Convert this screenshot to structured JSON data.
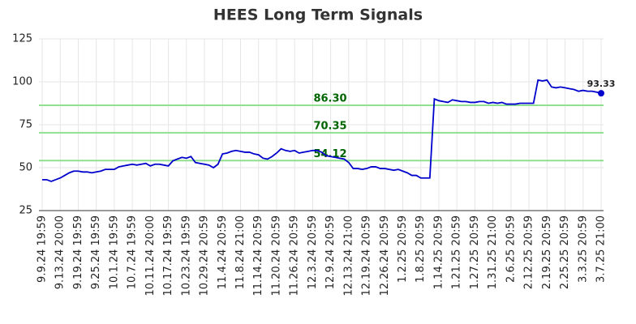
{
  "chart_data": {
    "type": "line",
    "title": "HEES Long Term Signals",
    "categories": [
      "9.9.24 19:59",
      null,
      null,
      null,
      "9.13.24 20:00",
      null,
      null,
      null,
      "9.19.24 19:59",
      null,
      null,
      null,
      "9.25.24 19:59",
      null,
      null,
      null,
      "10.1.24 19:59",
      null,
      null,
      null,
      "10.7.24 19:59",
      null,
      null,
      null,
      "10.11.24 20:00",
      null,
      null,
      null,
      "10.17.24 19:59",
      null,
      null,
      null,
      "10.23.24 19:59",
      null,
      null,
      null,
      "10.29.24 20:59",
      null,
      null,
      null,
      "11.4.24 20:59",
      null,
      null,
      null,
      "11.8.24 21:00",
      null,
      null,
      null,
      "11.14.24 20:59",
      null,
      null,
      null,
      "11.20.24 20:59",
      null,
      null,
      null,
      "11.26.24 20:59",
      null,
      null,
      null,
      "12.3.24 20:59",
      null,
      null,
      null,
      "12.9.24 20:59",
      null,
      null,
      null,
      "12.13.24 21:00",
      null,
      null,
      null,
      "12.19.24 20:59",
      null,
      null,
      null,
      "12.26.24 20:59",
      null,
      null,
      null,
      "1.2.25 20:59",
      null,
      null,
      null,
      "1.8.25 20:59",
      null,
      null,
      null,
      "1.14.25 20:59",
      null,
      null,
      null,
      "1.21.25 20:59",
      null,
      null,
      null,
      "1.27.25 20:59",
      null,
      null,
      null,
      "1.31.25 21:00",
      null,
      null,
      null,
      "2.6.25 20:59",
      null,
      null,
      null,
      "2.12.25 20:59",
      null,
      null,
      null,
      "2.19.25 20:59",
      null,
      null,
      null,
      "2.25.25 20:59",
      null,
      null,
      null,
      "3.3.25 20:59",
      null,
      null,
      null,
      "3.7.25 21:00"
    ],
    "values": [
      43,
      43,
      42,
      43,
      44,
      45.5,
      47,
      48,
      48,
      47.5,
      47.5,
      47,
      47.5,
      48,
      49,
      49,
      49,
      50.5,
      51,
      51.5,
      52,
      51.5,
      52,
      52.5,
      51,
      52,
      52,
      51.5,
      51,
      54,
      55,
      56,
      55.5,
      56.5,
      53,
      52.5,
      52,
      51.5,
      50,
      52,
      58,
      58.5,
      59.5,
      60,
      59.5,
      59,
      59,
      58,
      57.5,
      55.5,
      55,
      56.5,
      58.5,
      61,
      60,
      59.5,
      60,
      58.5,
      59,
      59.5,
      60,
      60,
      59,
      57,
      56.5,
      56,
      55.5,
      55,
      53,
      49.5,
      49.5,
      49,
      49.5,
      50.5,
      50.5,
      49.5,
      49.5,
      49,
      48.5,
      49,
      48,
      47,
      45.5,
      45.5,
      44,
      44,
      44,
      90,
      89,
      88.5,
      88,
      89.5,
      89,
      88.5,
      88.5,
      88,
      88,
      88.5,
      88.5,
      87.5,
      88,
      87.5,
      88,
      87,
      87,
      87,
      87.5,
      87.5,
      87.5,
      87.5,
      101,
      100.5,
      101,
      97,
      96.5,
      97,
      96.5,
      96,
      95.5,
      94.5,
      95,
      94.5,
      94.5,
      94,
      93.33
    ],
    "color": "#0000cc",
    "reference_lines": [
      {
        "value": 86.3,
        "label": "86.30"
      },
      {
        "value": 70.35,
        "label": "70.35"
      },
      {
        "value": 54.12,
        "label": "54.12"
      }
    ],
    "reference_color": "#90e090",
    "ylim": [
      25,
      125
    ],
    "yticks": [
      25,
      50,
      75,
      100,
      125
    ],
    "grid": true
  }
}
